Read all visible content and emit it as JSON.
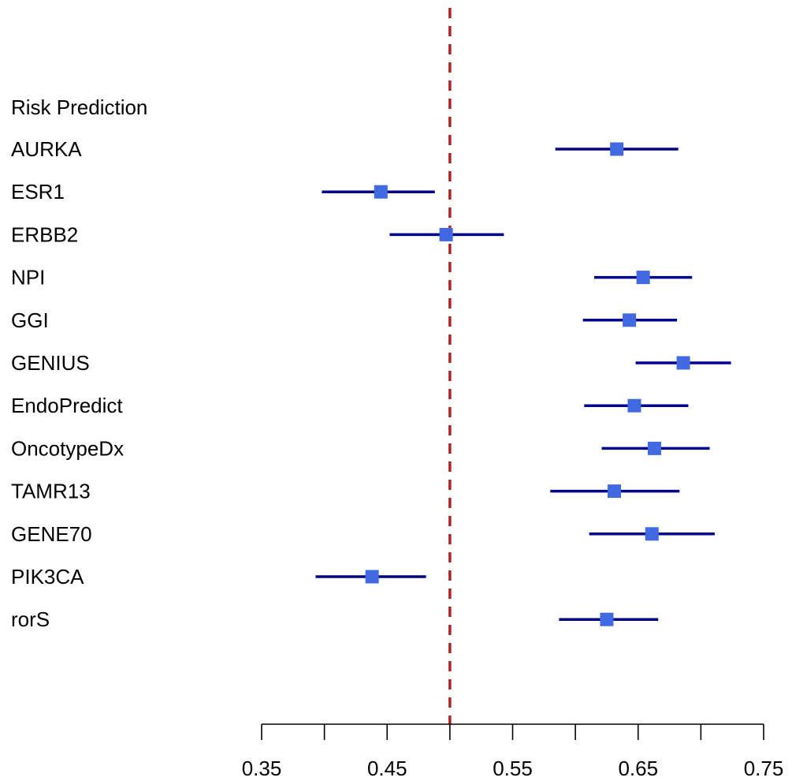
{
  "chart_data": {
    "type": "forest",
    "header": "Risk Prediction",
    "reference_line": {
      "value": 0.5,
      "color": "#B22222",
      "style": "dashed"
    },
    "xlim": [
      0.35,
      0.75
    ],
    "x_ticks": [
      0.35,
      0.4,
      0.45,
      0.5,
      0.55,
      0.6,
      0.65,
      0.7,
      0.75
    ],
    "x_tick_labels": [
      "0.35",
      "0.45",
      "0.55",
      "0.65",
      "0.75"
    ],
    "point_color": "#4169E1",
    "ci_color": "#00008B",
    "rows": [
      {
        "label": "AURKA",
        "estimate": 0.633,
        "lower": 0.584,
        "upper": 0.682
      },
      {
        "label": "ESR1",
        "estimate": 0.445,
        "lower": 0.398,
        "upper": 0.488
      },
      {
        "label": "ERBB2",
        "estimate": 0.497,
        "lower": 0.452,
        "upper": 0.543
      },
      {
        "label": "NPI",
        "estimate": 0.654,
        "lower": 0.615,
        "upper": 0.693
      },
      {
        "label": "GGI",
        "estimate": 0.643,
        "lower": 0.606,
        "upper": 0.681
      },
      {
        "label": "GENIUS",
        "estimate": 0.686,
        "lower": 0.648,
        "upper": 0.724
      },
      {
        "label": "EndoPredict",
        "estimate": 0.647,
        "lower": 0.607,
        "upper": 0.69
      },
      {
        "label": "OncotypeDx",
        "estimate": 0.663,
        "lower": 0.621,
        "upper": 0.707
      },
      {
        "label": "TAMR13",
        "estimate": 0.631,
        "lower": 0.58,
        "upper": 0.683
      },
      {
        "label": "GENE70",
        "estimate": 0.661,
        "lower": 0.611,
        "upper": 0.711
      },
      {
        "label": "PIK3CA",
        "estimate": 0.438,
        "lower": 0.393,
        "upper": 0.481
      },
      {
        "label": "rorS",
        "estimate": 0.625,
        "lower": 0.587,
        "upper": 0.666
      }
    ]
  }
}
